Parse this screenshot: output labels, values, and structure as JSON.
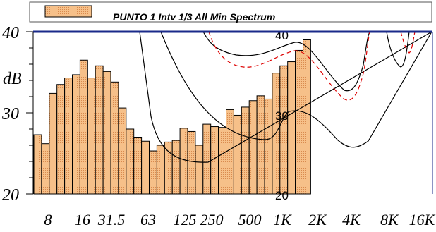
{
  "chart_data": {
    "type": "bar",
    "legend": {
      "label": "PUNTO 1 Intv 1/3 All Min Spectrum",
      "position": "top",
      "swatch_color": "#f6c089"
    },
    "ylabel": "dB",
    "ylim": [
      20,
      40
    ],
    "y_ticks": [
      {
        "value": 20,
        "label": "20"
      },
      {
        "value": 30,
        "label": "30"
      },
      {
        "value": 40,
        "label": "40"
      }
    ],
    "x_tick_labels": [
      "8",
      "16",
      "31.5",
      "63",
      "125",
      "250",
      "500",
      "1K",
      "2K",
      "4K",
      "8K",
      "16K"
    ],
    "bar_color": "#f6c089",
    "bar_edge_color": "#000000",
    "frame_color": "#1a2a8a",
    "values": [
      27.3,
      26.2,
      32.4,
      33.5,
      34.3,
      34.7,
      36.5,
      34.3,
      35.8,
      35.1,
      33.8,
      30.6,
      28.0,
      27.0,
      26.5,
      25.3,
      26.0,
      26.4,
      26.6,
      28.1,
      27.7,
      26.0,
      28.6,
      28.3,
      28.2,
      30.4,
      29.7,
      30.7,
      31.5,
      32.1,
      31.7,
      34.9,
      35.8,
      36.3,
      37.7,
      39.0
    ],
    "contour_labels": [
      {
        "text": "40"
      },
      {
        "text": "30"
      },
      {
        "text": "20"
      }
    ],
    "contour_line_colors": [
      "#000000",
      "#dd0000"
    ]
  }
}
